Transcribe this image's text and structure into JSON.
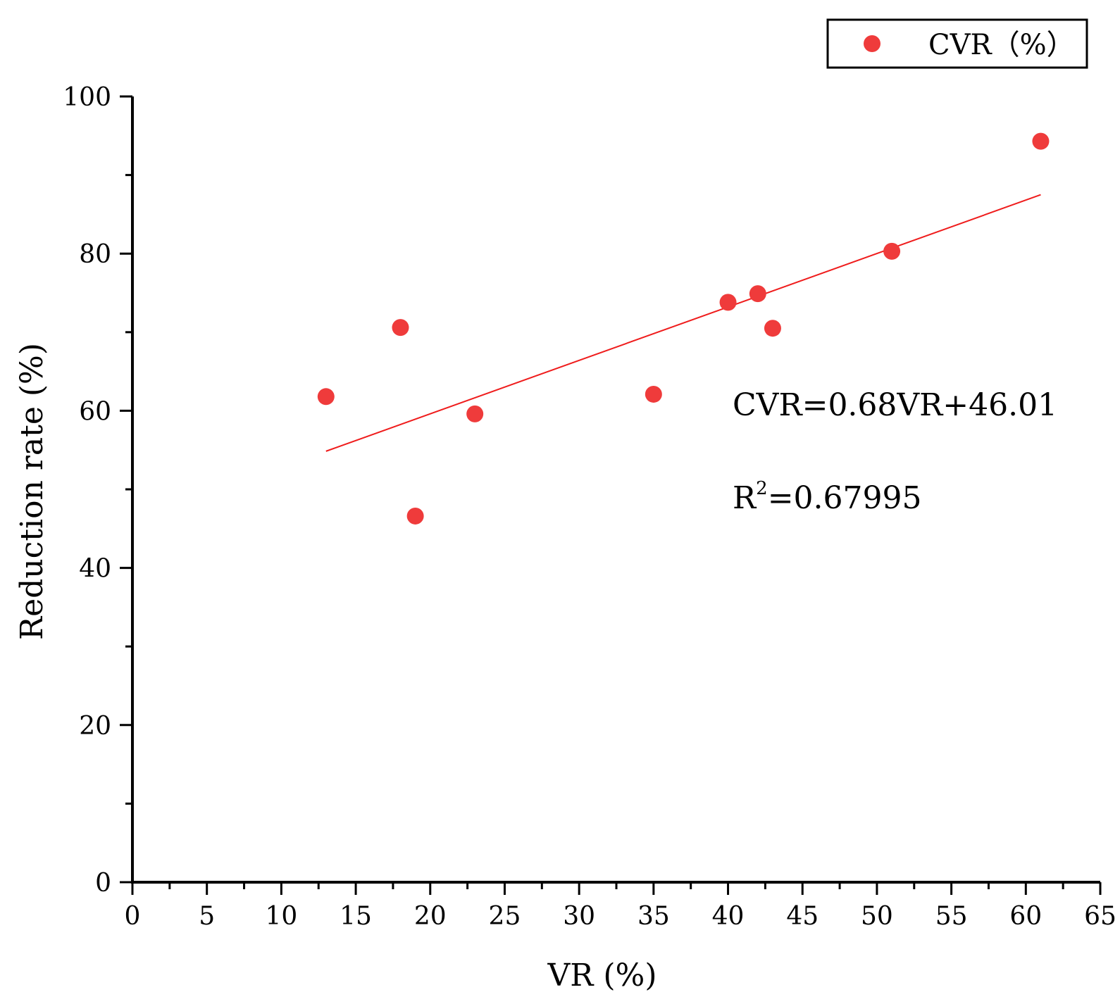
{
  "chart_data": {
    "type": "scatter",
    "title": "",
    "xlabel": "VR (%)",
    "ylabel": "Reduction rate (%)",
    "xlim": [
      0,
      65
    ],
    "ylim": [
      0,
      100
    ],
    "xticks": [
      0,
      5,
      10,
      15,
      20,
      25,
      30,
      35,
      40,
      45,
      50,
      55,
      60,
      65
    ],
    "yticks": [
      0,
      20,
      40,
      60,
      80,
      100
    ],
    "x_minor_step": 2.5,
    "y_minor_step": 10,
    "grid": false,
    "legend_position": "top-right",
    "series": [
      {
        "name": "CVR（%）",
        "color": "#ef3b3b",
        "x": [
          13,
          18,
          19,
          23,
          35,
          40,
          42,
          43,
          51,
          61
        ],
        "y": [
          61.8,
          70.6,
          46.6,
          59.6,
          62.1,
          73.8,
          74.9,
          70.5,
          80.3,
          94.3
        ]
      }
    ],
    "fit": {
      "slope": 0.68,
      "intercept": 46.01,
      "x_range": [
        13,
        61
      ],
      "color": "#ef1c1c",
      "equation": "CVR=0.68VR+46.01",
      "r2_prefix": "R",
      "r2_superscript": "2",
      "r2_value": "=0.67995"
    }
  }
}
